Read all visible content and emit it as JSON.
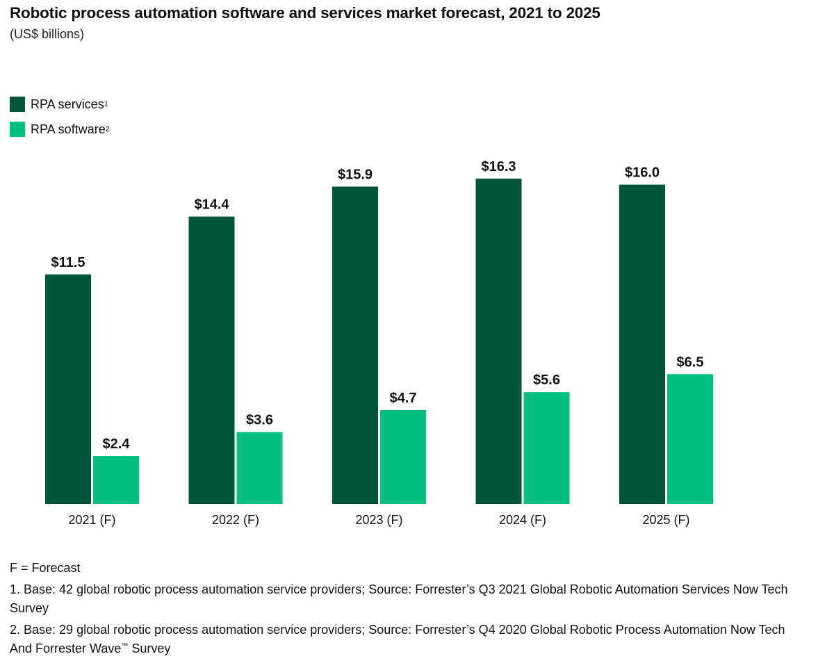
{
  "chart_data": {
    "type": "bar",
    "title": "Robotic process automation software and services market forecast, 2021 to 2025",
    "subtitle": "(US$ billions)",
    "categories": [
      "2021 (F)",
      "2022 (F)",
      "2023 (F)",
      "2024 (F)",
      "2025 (F)"
    ],
    "series": [
      {
        "name": "RPA services",
        "sup": "1",
        "color": "#00563b",
        "values": [
          11.5,
          14.4,
          15.9,
          16.3,
          16.0
        ],
        "labels": [
          "$11.5",
          "$14.4",
          "$15.9",
          "$16.3",
          "$16.0"
        ]
      },
      {
        "name": "RPA software",
        "sup": "2",
        "color": "#00bf7f",
        "values": [
          2.4,
          3.6,
          4.7,
          5.6,
          6.5
        ],
        "labels": [
          "$2.4",
          "$3.6",
          "$4.7",
          "$5.6",
          "$6.5"
        ]
      }
    ],
    "xlabel": "",
    "ylabel": "",
    "ylim": [
      0,
      16.3
    ],
    "grid": false,
    "legend": "top-left"
  },
  "footnotes": {
    "forecast_note": "F = Forecast",
    "note1": "1. Base: 42 global robotic process automation service providers; Source: Forrester’s Q3 2021 Global Robotic Automation Services Now Tech Survey",
    "note2_main": "2. Base: 29 global robotic process automation service providers; Source: Forrester’s Q4 2020 Global Robotic Process Automation Now Tech And Forrester Wave",
    "note2_tm": "™",
    "note2_end": " Survey"
  }
}
